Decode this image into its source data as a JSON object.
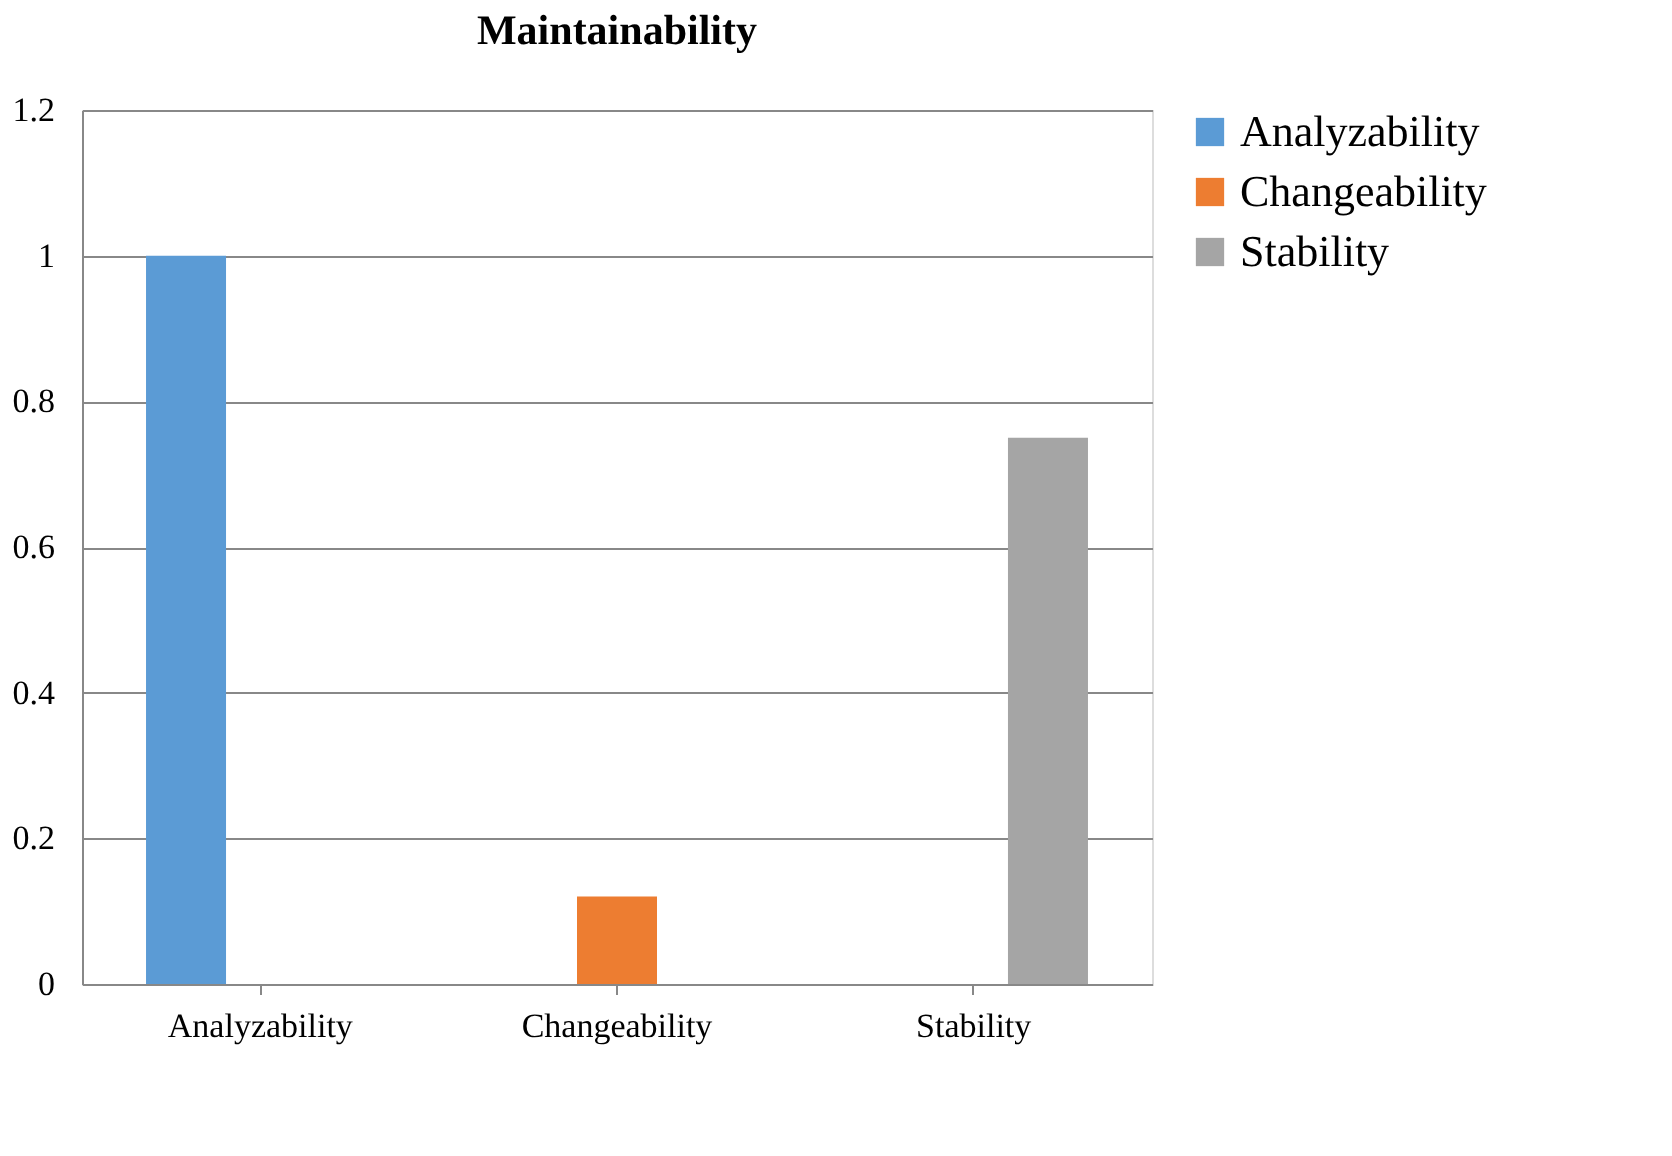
{
  "chart_data": {
    "type": "bar",
    "title": "Maintainability",
    "categories": [
      "Analyzability",
      "Changeability",
      "Stability"
    ],
    "series": [
      {
        "name": "Analyzability",
        "color": "#5b9bd5",
        "values": [
          1,
          null,
          null
        ]
      },
      {
        "name": "Changeability",
        "color": "#ed7d31",
        "values": [
          null,
          0.12,
          null
        ]
      },
      {
        "name": "Stability",
        "color": "#a5a5a5",
        "values": [
          null,
          null,
          0.75
        ]
      }
    ],
    "ylim": [
      0,
      1.2
    ],
    "yticks": [
      0,
      0.2,
      0.4,
      0.6,
      0.8,
      1,
      1.2
    ],
    "grid": "y",
    "legend": "right"
  }
}
